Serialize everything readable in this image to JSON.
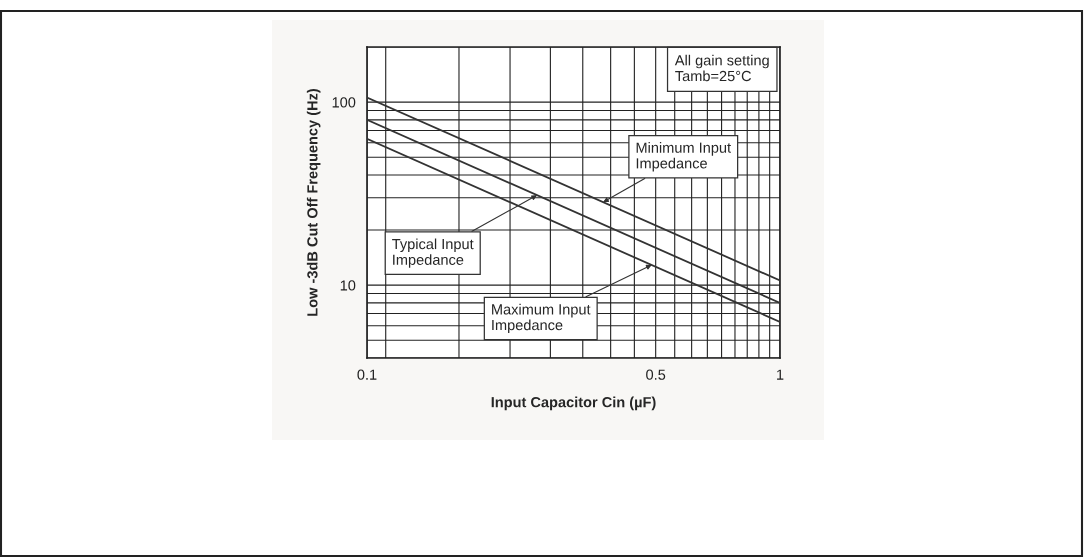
{
  "chart_data": {
    "type": "line",
    "xlabel": "Input Capacitor Cin (µF)",
    "ylabel": "Low -3dB Cut Off Frequency (Hz)",
    "log": "xy",
    "grid": true,
    "legend": false,
    "marker": "none",
    "line_style": "solid",
    "xlim": [
      0.1,
      1
    ],
    "ylim": [
      4,
      200
    ],
    "xticks": [
      0.1,
      {
        "value": 0.111,
        "label": null
      },
      {
        "value": 0.167,
        "label": null
      },
      {
        "value": 0.222,
        "label": null
      },
      {
        "value": 0.278,
        "label": null
      },
      {
        "value": 0.333,
        "label": null
      },
      {
        "value": 0.389,
        "label": null
      },
      {
        "value": 0.444,
        "label": null
      },
      0.5,
      {
        "value": 0.556,
        "label": null
      },
      {
        "value": 0.611,
        "label": null
      },
      {
        "value": 0.667,
        "label": null
      },
      {
        "value": 0.722,
        "label": null
      },
      {
        "value": 0.778,
        "label": null
      },
      {
        "value": 0.833,
        "label": null
      },
      {
        "value": 0.889,
        "label": null
      },
      {
        "value": 0.944,
        "label": null
      },
      1
    ],
    "yticks": [
      {
        "value": 4,
        "label": null
      },
      {
        "value": 5,
        "label": null
      },
      {
        "value": 6,
        "label": null
      },
      {
        "value": 7,
        "label": null
      },
      {
        "value": 8,
        "label": null
      },
      {
        "value": 9,
        "label": null
      },
      10,
      {
        "value": 20,
        "label": null
      },
      {
        "value": 30,
        "label": null
      },
      {
        "value": 40,
        "label": null
      },
      {
        "value": 50,
        "label": null
      },
      {
        "value": 60,
        "label": null
      },
      {
        "value": 70,
        "label": null
      },
      {
        "value": 80,
        "label": null
      },
      {
        "value": 90,
        "label": null
      },
      100,
      {
        "value": 200,
        "label": null
      }
    ],
    "x": [
      0.1,
      1
    ],
    "series": [
      {
        "color": "#333333",
        "values": [
          106,
          10.6
        ]
      },
      {
        "color": "#333333",
        "values": [
          80,
          8
        ]
      },
      {
        "color": "#333333",
        "values": [
          63,
          6.3
        ]
      }
    ],
    "annotations": [
      "All gain setting\nTamb=25°C",
      {
        "text": "Minimum Input\nImpedance",
        "x": 0.373,
        "y": 28.4
      },
      {
        "text": "Typical Input\nImpedance",
        "x": 0.258,
        "y": 31
      },
      {
        "text": "Maximum Input\nImpedance",
        "x": 0.489,
        "y": 12.9
      }
    ]
  }
}
